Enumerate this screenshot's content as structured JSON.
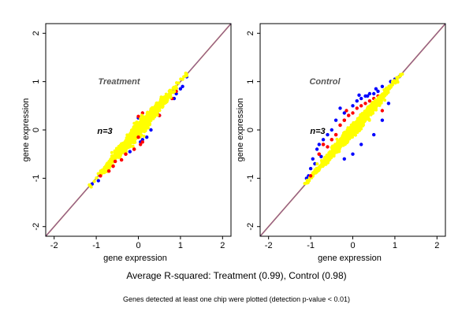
{
  "chart_data": [
    {
      "type": "scatter",
      "title": "Treatment",
      "annotation": "n=3",
      "xlabel": "gene expression",
      "ylabel": "gene expression",
      "xlim": [
        -2.2,
        2.2
      ],
      "ylim": [
        -2.2,
        2.2
      ],
      "xticks": [
        "-2",
        "-1",
        "0",
        "1",
        "2"
      ],
      "yticks": [
        "-2",
        "-1",
        "0",
        "1",
        "2"
      ],
      "reference_lines": [
        {
          "name": "identity",
          "slope": 1,
          "intercept": 0,
          "color": "#d2691e"
        },
        {
          "name": "fit",
          "slope": 1.0,
          "intercept": 0.0,
          "color": "#6a5acd"
        }
      ],
      "series": [
        {
          "color": "#0000ff",
          "points": [
            [
              -1.1,
              -1.12
            ],
            [
              -0.95,
              -1.05
            ],
            [
              -0.5,
              -0.55
            ],
            [
              -0.4,
              -0.45
            ],
            [
              0.1,
              -0.2
            ],
            [
              0.2,
              -0.15
            ],
            [
              0.3,
              0.0
            ],
            [
              0.5,
              0.3
            ],
            [
              0.75,
              0.75
            ],
            [
              0.85,
              0.65
            ],
            [
              0.9,
              0.75
            ],
            [
              1.0,
              0.85
            ],
            [
              1.05,
              0.9
            ],
            [
              1.15,
              1.1
            ],
            [
              0.6,
              0.55
            ],
            [
              -0.6,
              -0.75
            ],
            [
              -0.2,
              -0.45
            ],
            [
              0.05,
              -0.25
            ],
            [
              0.0,
              0.25
            ],
            [
              0.4,
              0.45
            ]
          ]
        },
        {
          "color": "#ff0000",
          "points": [
            [
              -0.9,
              -0.95
            ],
            [
              -0.7,
              -0.85
            ],
            [
              -0.6,
              -0.75
            ],
            [
              -0.55,
              -0.65
            ],
            [
              -0.4,
              -0.62
            ],
            [
              -0.3,
              -0.5
            ],
            [
              -0.1,
              -0.4
            ],
            [
              0.0,
              -0.15
            ],
            [
              0.05,
              -0.3
            ],
            [
              0.1,
              -0.25
            ],
            [
              0.0,
              0.28
            ],
            [
              0.1,
              0.35
            ],
            [
              0.3,
              0.4
            ],
            [
              0.35,
              0.45
            ],
            [
              0.45,
              0.35
            ],
            [
              0.5,
              0.3
            ],
            [
              0.6,
              0.6
            ],
            [
              0.7,
              0.7
            ],
            [
              0.8,
              0.65
            ],
            [
              0.9,
              0.8
            ]
          ]
        },
        {
          "color": "#ffff00",
          "band": {
            "x_range": [
              -1.15,
              1.15
            ],
            "half_width": 0.15,
            "count": 1000
          }
        }
      ]
    },
    {
      "type": "scatter",
      "title": "Control",
      "annotation": "n=3",
      "xlabel": "gene expression",
      "ylabel": "gene expression",
      "xlim": [
        -2.2,
        2.2
      ],
      "ylim": [
        -2.2,
        2.2
      ],
      "xticks": [
        "-2",
        "-1",
        "0",
        "1",
        "2"
      ],
      "yticks": [
        "-2",
        "-1",
        "0",
        "1",
        "2"
      ],
      "reference_lines": [
        {
          "name": "identity",
          "slope": 1,
          "intercept": 0,
          "color": "#d2691e"
        },
        {
          "name": "fit",
          "slope": 1.0,
          "intercept": 0.0,
          "color": "#6a5acd"
        }
      ],
      "series": [
        {
          "color": "#0000ff",
          "points": [
            [
              -1.1,
              -1.0
            ],
            [
              -1.0,
              -0.8
            ],
            [
              -0.95,
              -0.6
            ],
            [
              -0.9,
              -0.7
            ],
            [
              -0.85,
              -0.4
            ],
            [
              -0.8,
              -0.3
            ],
            [
              -0.7,
              -0.2
            ],
            [
              -0.6,
              -0.1
            ],
            [
              -0.5,
              0.0
            ],
            [
              -0.4,
              0.2
            ],
            [
              -0.2,
              0.35
            ],
            [
              0.0,
              0.5
            ],
            [
              0.1,
              0.6
            ],
            [
              0.2,
              0.65
            ],
            [
              0.35,
              0.7
            ],
            [
              0.5,
              0.75
            ],
            [
              0.6,
              0.8
            ],
            [
              0.8,
              0.85
            ],
            [
              1.0,
              1.05
            ],
            [
              1.1,
              1.1
            ],
            [
              0.9,
              1.0
            ],
            [
              0.7,
              0.9
            ],
            [
              0.4,
              0.75
            ],
            [
              0.3,
              0.7
            ],
            [
              -0.2,
              -0.6
            ],
            [
              0.0,
              -0.5
            ],
            [
              0.2,
              -0.3
            ],
            [
              0.5,
              -0.1
            ],
            [
              0.7,
              0.2
            ],
            [
              0.85,
              0.55
            ],
            [
              -0.3,
              0.45
            ],
            [
              0.15,
              0.72
            ],
            [
              -0.75,
              -0.55
            ],
            [
              -1.05,
              -0.95
            ],
            [
              0.55,
              0.85
            ]
          ]
        },
        {
          "color": "#ff0000",
          "points": [
            [
              -1.0,
              -0.95
            ],
            [
              -0.8,
              -0.5
            ],
            [
              -0.7,
              -0.3
            ],
            [
              -0.5,
              -0.2
            ],
            [
              -0.4,
              -0.1
            ],
            [
              -0.3,
              0.1
            ],
            [
              -0.2,
              0.2
            ],
            [
              -0.1,
              0.3
            ],
            [
              0.0,
              0.35
            ],
            [
              0.1,
              0.45
            ],
            [
              0.2,
              0.5
            ],
            [
              0.3,
              0.55
            ],
            [
              0.4,
              0.6
            ],
            [
              0.5,
              0.65
            ],
            [
              0.6,
              0.7
            ],
            [
              -0.6,
              -0.35
            ],
            [
              0.7,
              0.4
            ],
            [
              0.2,
              0.15
            ],
            [
              -0.15,
              0.4
            ],
            [
              0.45,
              0.5
            ]
          ]
        },
        {
          "color": "#ffff00",
          "band": {
            "x_range": [
              -1.1,
              1.15
            ],
            "half_width": 0.32,
            "count": 1200
          }
        }
      ]
    }
  ],
  "caption_main": "Average R-squared: Treatment (0.99), Control (0.98)",
  "caption_note": "Genes detected at least one chip were plotted (detection p-value < 0.01)"
}
